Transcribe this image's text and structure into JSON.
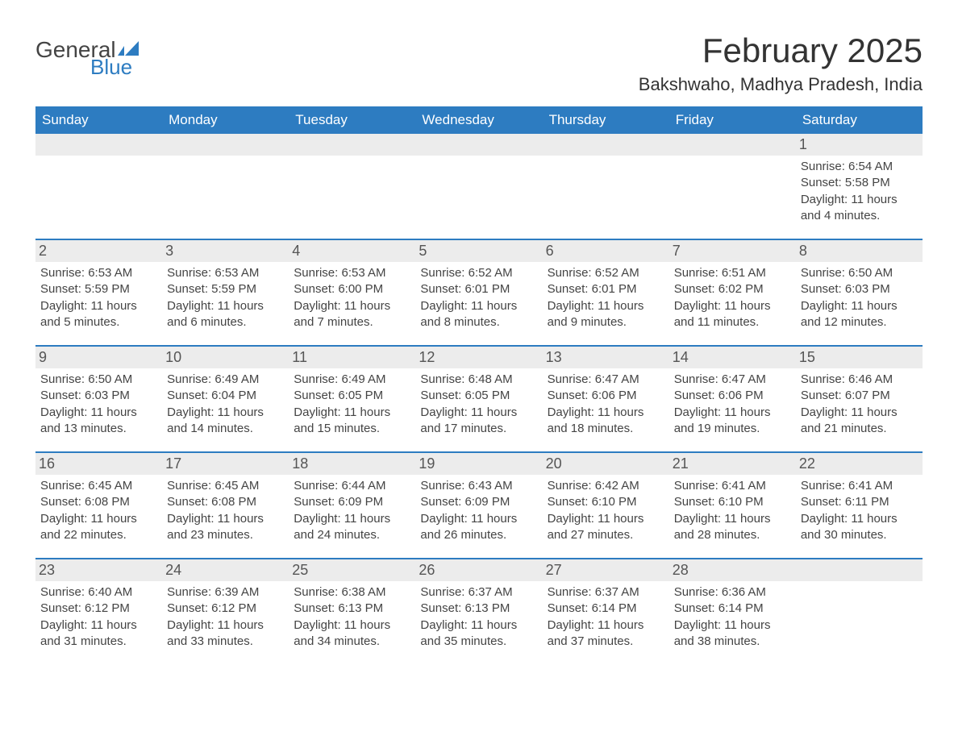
{
  "brand": {
    "general": "General",
    "blue": "Blue",
    "flag_color": "#2d7cc1"
  },
  "title": "February 2025",
  "location": "Bakshwaho, Madhya Pradesh, India",
  "weekdays": [
    "Sunday",
    "Monday",
    "Tuesday",
    "Wednesday",
    "Thursday",
    "Friday",
    "Saturday"
  ],
  "colors": {
    "header_bg": "#2d7cc1",
    "header_text": "#ffffff",
    "day_number_bg": "#ececec",
    "text": "#333333",
    "body_text": "#444444",
    "week_border": "#2d7cc1",
    "page_bg": "#ffffff"
  },
  "typography": {
    "title_fontsize": 42,
    "location_fontsize": 22,
    "weekday_fontsize": 17,
    "daynum_fontsize": 18,
    "body_fontsize": 15
  },
  "layout": {
    "columns": 7,
    "rows": 5,
    "week_border_width": 2
  },
  "weeks": [
    [
      {
        "day": "",
        "lines": []
      },
      {
        "day": "",
        "lines": []
      },
      {
        "day": "",
        "lines": []
      },
      {
        "day": "",
        "lines": []
      },
      {
        "day": "",
        "lines": []
      },
      {
        "day": "",
        "lines": []
      },
      {
        "day": "1",
        "lines": [
          "Sunrise: 6:54 AM",
          "Sunset: 5:58 PM",
          "Daylight: 11 hours and 4 minutes."
        ]
      }
    ],
    [
      {
        "day": "2",
        "lines": [
          "Sunrise: 6:53 AM",
          "Sunset: 5:59 PM",
          "Daylight: 11 hours and 5 minutes."
        ]
      },
      {
        "day": "3",
        "lines": [
          "Sunrise: 6:53 AM",
          "Sunset: 5:59 PM",
          "Daylight: 11 hours and 6 minutes."
        ]
      },
      {
        "day": "4",
        "lines": [
          "Sunrise: 6:53 AM",
          "Sunset: 6:00 PM",
          "Daylight: 11 hours and 7 minutes."
        ]
      },
      {
        "day": "5",
        "lines": [
          "Sunrise: 6:52 AM",
          "Sunset: 6:01 PM",
          "Daylight: 11 hours and 8 minutes."
        ]
      },
      {
        "day": "6",
        "lines": [
          "Sunrise: 6:52 AM",
          "Sunset: 6:01 PM",
          "Daylight: 11 hours and 9 minutes."
        ]
      },
      {
        "day": "7",
        "lines": [
          "Sunrise: 6:51 AM",
          "Sunset: 6:02 PM",
          "Daylight: 11 hours and 11 minutes."
        ]
      },
      {
        "day": "8",
        "lines": [
          "Sunrise: 6:50 AM",
          "Sunset: 6:03 PM",
          "Daylight: 11 hours and 12 minutes."
        ]
      }
    ],
    [
      {
        "day": "9",
        "lines": [
          "Sunrise: 6:50 AM",
          "Sunset: 6:03 PM",
          "Daylight: 11 hours and 13 minutes."
        ]
      },
      {
        "day": "10",
        "lines": [
          "Sunrise: 6:49 AM",
          "Sunset: 6:04 PM",
          "Daylight: 11 hours and 14 minutes."
        ]
      },
      {
        "day": "11",
        "lines": [
          "Sunrise: 6:49 AM",
          "Sunset: 6:05 PM",
          "Daylight: 11 hours and 15 minutes."
        ]
      },
      {
        "day": "12",
        "lines": [
          "Sunrise: 6:48 AM",
          "Sunset: 6:05 PM",
          "Daylight: 11 hours and 17 minutes."
        ]
      },
      {
        "day": "13",
        "lines": [
          "Sunrise: 6:47 AM",
          "Sunset: 6:06 PM",
          "Daylight: 11 hours and 18 minutes."
        ]
      },
      {
        "day": "14",
        "lines": [
          "Sunrise: 6:47 AM",
          "Sunset: 6:06 PM",
          "Daylight: 11 hours and 19 minutes."
        ]
      },
      {
        "day": "15",
        "lines": [
          "Sunrise: 6:46 AM",
          "Sunset: 6:07 PM",
          "Daylight: 11 hours and 21 minutes."
        ]
      }
    ],
    [
      {
        "day": "16",
        "lines": [
          "Sunrise: 6:45 AM",
          "Sunset: 6:08 PM",
          "Daylight: 11 hours and 22 minutes."
        ]
      },
      {
        "day": "17",
        "lines": [
          "Sunrise: 6:45 AM",
          "Sunset: 6:08 PM",
          "Daylight: 11 hours and 23 minutes."
        ]
      },
      {
        "day": "18",
        "lines": [
          "Sunrise: 6:44 AM",
          "Sunset: 6:09 PM",
          "Daylight: 11 hours and 24 minutes."
        ]
      },
      {
        "day": "19",
        "lines": [
          "Sunrise: 6:43 AM",
          "Sunset: 6:09 PM",
          "Daylight: 11 hours and 26 minutes."
        ]
      },
      {
        "day": "20",
        "lines": [
          "Sunrise: 6:42 AM",
          "Sunset: 6:10 PM",
          "Daylight: 11 hours and 27 minutes."
        ]
      },
      {
        "day": "21",
        "lines": [
          "Sunrise: 6:41 AM",
          "Sunset: 6:10 PM",
          "Daylight: 11 hours and 28 minutes."
        ]
      },
      {
        "day": "22",
        "lines": [
          "Sunrise: 6:41 AM",
          "Sunset: 6:11 PM",
          "Daylight: 11 hours and 30 minutes."
        ]
      }
    ],
    [
      {
        "day": "23",
        "lines": [
          "Sunrise: 6:40 AM",
          "Sunset: 6:12 PM",
          "Daylight: 11 hours and 31 minutes."
        ]
      },
      {
        "day": "24",
        "lines": [
          "Sunrise: 6:39 AM",
          "Sunset: 6:12 PM",
          "Daylight: 11 hours and 33 minutes."
        ]
      },
      {
        "day": "25",
        "lines": [
          "Sunrise: 6:38 AM",
          "Sunset: 6:13 PM",
          "Daylight: 11 hours and 34 minutes."
        ]
      },
      {
        "day": "26",
        "lines": [
          "Sunrise: 6:37 AM",
          "Sunset: 6:13 PM",
          "Daylight: 11 hours and 35 minutes."
        ]
      },
      {
        "day": "27",
        "lines": [
          "Sunrise: 6:37 AM",
          "Sunset: 6:14 PM",
          "Daylight: 11 hours and 37 minutes."
        ]
      },
      {
        "day": "28",
        "lines": [
          "Sunrise: 6:36 AM",
          "Sunset: 6:14 PM",
          "Daylight: 11 hours and 38 minutes."
        ]
      },
      {
        "day": "",
        "lines": []
      }
    ]
  ]
}
